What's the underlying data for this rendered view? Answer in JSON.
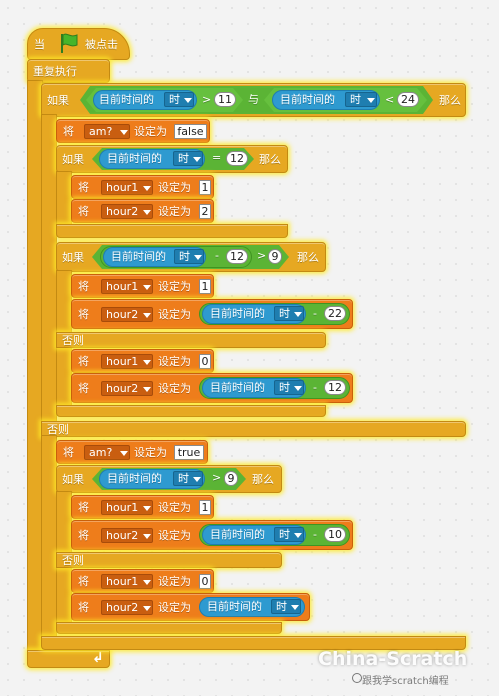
{
  "hat": {
    "label_prefix": "当",
    "label_suffix": "被点击",
    "icon": "green-flag-icon"
  },
  "forever": {
    "label": "重复执行",
    "end_icon": "loop-arrow-icon"
  },
  "if_outer": {
    "if_label": "如果",
    "and_label": "与",
    "then_label": "那么",
    "else_label": "否则",
    "cond1": {
      "reporter": "目前时间的",
      "unit": "时",
      "op": ">",
      "value": "11"
    },
    "cond2": {
      "reporter": "目前时间的",
      "unit": "时",
      "op": "<",
      "value": "24"
    }
  },
  "then_branch": {
    "set_am": {
      "set_label": "将",
      "var": "am?",
      "to_label": "设定为",
      "value": "false"
    },
    "if12": {
      "if_label": "如果",
      "then_label": "那么",
      "reporter": "目前时间的",
      "unit": "时",
      "op": "=",
      "value": "12",
      "set_h1": {
        "set_label": "将",
        "var": "hour1",
        "to_label": "设定为",
        "value": "1"
      },
      "set_h2": {
        "set_label": "将",
        "var": "hour2",
        "to_label": "设定为",
        "value": "2"
      }
    },
    "if_minus": {
      "if_label": "如果",
      "then_label": "那么",
      "else_label": "否则",
      "reporter": "目前时间的",
      "unit": "时",
      "minus": "-",
      "minus_value": "12",
      "op": ">",
      "value": "9",
      "set_h1": {
        "set_label": "将",
        "var": "hour1",
        "to_label": "设定为",
        "value": "1"
      },
      "set_h2": {
        "set_label": "将",
        "var": "hour2",
        "to_label": "设定为",
        "reporter": "目前时间的",
        "unit": "时",
        "minus": "-",
        "minus_value": "22"
      },
      "else_h1": {
        "set_label": "将",
        "var": "hour1",
        "to_label": "设定为",
        "value": "0"
      },
      "else_h2": {
        "set_label": "将",
        "var": "hour2",
        "to_label": "设定为",
        "reporter": "目前时间的",
        "unit": "时",
        "minus": "-",
        "minus_value": "12"
      }
    }
  },
  "else_branch": {
    "set_am": {
      "set_label": "将",
      "var": "am?",
      "to_label": "设定为",
      "value": "true"
    },
    "if9": {
      "if_label": "如果",
      "then_label": "那么",
      "else_label": "否则",
      "reporter": "目前时间的",
      "unit": "时",
      "op": ">",
      "value": "9",
      "set_h1": {
        "set_label": "将",
        "var": "hour1",
        "to_label": "设定为",
        "value": "1"
      },
      "set_h2": {
        "set_label": "将",
        "var": "hour2",
        "to_label": "设定为",
        "reporter": "目前时间的",
        "unit": "时",
        "minus": "-",
        "minus_value": "10"
      },
      "else_h1": {
        "set_label": "将",
        "var": "hour1",
        "to_label": "设定为",
        "value": "0"
      },
      "else_h2": {
        "set_label": "将",
        "var": "hour2",
        "to_label": "设定为",
        "reporter": "目前时间的",
        "unit": "时"
      }
    }
  },
  "watermark": {
    "title": "China-Scratch",
    "subtitle": "跟我学scratch编程"
  },
  "colors": {
    "control": "#e6a822",
    "data": "#ee7d1b",
    "operator": "#5bb435",
    "sensing": "#2e9ad0",
    "glow": "#ffea28"
  }
}
